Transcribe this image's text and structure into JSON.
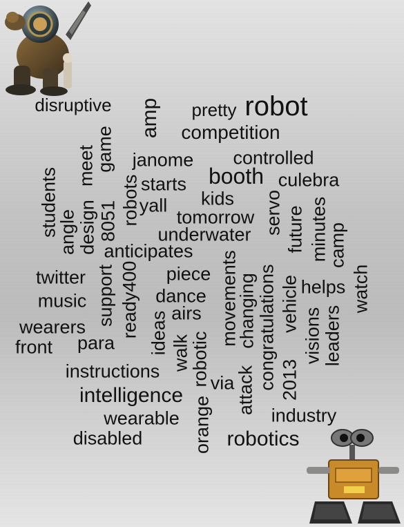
{
  "words": {
    "robot": "robot",
    "pretty": "pretty",
    "disruptive": "disruptive",
    "amp": "amp",
    "competition": "competition",
    "game": "game",
    "meet": "meet",
    "janome": "janome",
    "controlled": "controlled",
    "booth": "booth",
    "culebra": "culebra",
    "starts": "starts",
    "robots": "robots",
    "students": "students",
    "kids": "kids",
    "yall": "yall",
    "tomorrow": "tomorrow",
    "servo": "servo",
    "future": "future",
    "minutes": "minutes",
    "camp": "camp",
    "angle": "angle",
    "design": "design",
    "8051": "8051",
    "underwater": "underwater",
    "anticipates": "anticipates",
    "twitter": "twitter",
    "support": "support",
    "ready400": "ready400",
    "piece": "piece",
    "movements": "movements",
    "watch": "watch",
    "music": "music",
    "dance": "dance",
    "helps": "helps",
    "changing": "changing",
    "congratulations": "congratulations",
    "vehicle": "vehicle",
    "airs": "airs",
    "wearers": "wearers",
    "ideas": "ideas",
    "visions": "visions",
    "leaders": "leaders",
    "front": "front",
    "para": "para",
    "walk": "walk",
    "robotic": "robotic",
    "2013": "2013",
    "instructions": "instructions",
    "via": "via",
    "attack": "attack",
    "intelligence": "intelligence",
    "orange": "orange",
    "wearable": "wearable",
    "industry": "industry",
    "disabled": "disabled",
    "robotics": "robotics"
  },
  "images": {
    "top_left": "diving-suit-robot-figure",
    "bottom_right": "wall-e-robot-figure"
  }
}
